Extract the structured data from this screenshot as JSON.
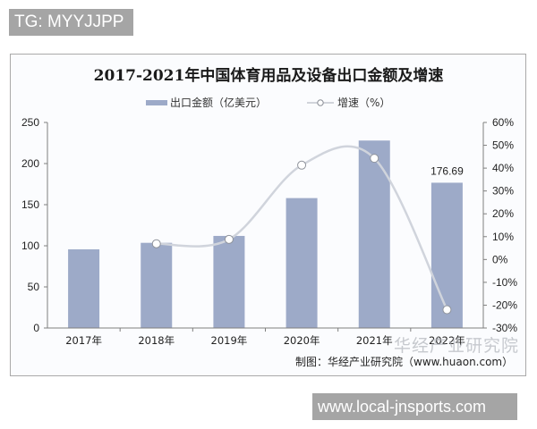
{
  "watermarks": {
    "top_badge": "TG: MYYJJPP",
    "bottom_badge": "www.local-jnsports.com",
    "overlay_text": "华经产业研究院"
  },
  "chart_data": {
    "type": "bar",
    "title": "2017-2021年中国体育用品及设备出口金额及增速",
    "categories": [
      "2017年",
      "2018年",
      "2019年",
      "2020年",
      "2021年",
      "2022年"
    ],
    "series": [
      {
        "name": "出口金额（亿美元）",
        "type": "bar",
        "axis": "left",
        "color": "#9daac8",
        "values": [
          95.7,
          103.6,
          112.0,
          158.0,
          228.0,
          176.69
        ]
      },
      {
        "name": "增速（%）",
        "type": "line",
        "axis": "right",
        "color": "#d0d4dc",
        "smooth": true,
        "values": [
          null,
          6.9,
          8.8,
          41.3,
          44.3,
          -22.0
        ]
      }
    ],
    "data_labels": [
      {
        "category": "2022年",
        "series": "出口金额（亿美元）",
        "text": "176.69"
      }
    ],
    "left_axis": {
      "ylim": [
        0,
        250
      ],
      "ticks": [
        "0",
        "50",
        "100",
        "150",
        "200",
        "250"
      ]
    },
    "right_axis": {
      "ylim": [
        -30,
        60
      ],
      "ticks": [
        "-30%",
        "-20%",
        "-10%",
        "0%",
        "10%",
        "20%",
        "30%",
        "40%",
        "50%",
        "60%"
      ]
    },
    "xlabel": "",
    "ylabel": "",
    "grid": false,
    "legend_position": "top",
    "source": "制图：华经产业研究院（www.huaon.com）"
  }
}
